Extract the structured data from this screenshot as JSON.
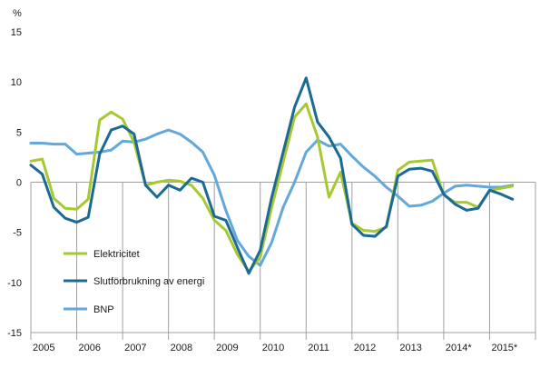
{
  "chart_data": {
    "type": "line",
    "ylabel": "%",
    "ylim": [
      -15,
      15
    ],
    "yticks": [
      15,
      10,
      5,
      0,
      -5,
      -10,
      -15
    ],
    "xlim": [
      2005.0,
      2016.0
    ],
    "xticks": [
      {
        "label": "2005",
        "x": 2005.0
      },
      {
        "label": "2006",
        "x": 2006.0
      },
      {
        "label": "2007",
        "x": 2007.0
      },
      {
        "label": "2008",
        "x": 2008.0
      },
      {
        "label": "2009",
        "x": 2009.0
      },
      {
        "label": "2010",
        "x": 2010.0
      },
      {
        "label": "2011",
        "x": 2011.0
      },
      {
        "label": "2012",
        "x": 2012.0
      },
      {
        "label": "2013",
        "x": 2013.0
      },
      {
        "label": "2014*",
        "x": 2014.0
      },
      {
        "label": "2015*",
        "x": 2015.0
      }
    ],
    "gridlines": false,
    "legend_position": "bottom-left",
    "series": [
      {
        "name": "Elektricitet",
        "color": "#a6c932",
        "points": [
          [
            2005.0,
            2.1
          ],
          [
            2005.25,
            2.3
          ],
          [
            2005.5,
            -1.6
          ],
          [
            2005.75,
            -2.6
          ],
          [
            2006.0,
            -2.7
          ],
          [
            2006.25,
            -1.7
          ],
          [
            2006.5,
            6.2
          ],
          [
            2006.75,
            7.0
          ],
          [
            2007.0,
            6.3
          ],
          [
            2007.25,
            4.0
          ],
          [
            2007.5,
            -0.3
          ],
          [
            2007.75,
            0.0
          ],
          [
            2008.0,
            0.2
          ],
          [
            2008.25,
            0.1
          ],
          [
            2008.5,
            -0.3
          ],
          [
            2008.75,
            -1.6
          ],
          [
            2009.0,
            -3.8
          ],
          [
            2009.25,
            -4.8
          ],
          [
            2009.5,
            -7.2
          ],
          [
            2009.75,
            -8.9
          ],
          [
            2010.0,
            -7.5
          ],
          [
            2010.25,
            -2.5
          ],
          [
            2010.5,
            2.0
          ],
          [
            2010.75,
            6.5
          ],
          [
            2011.0,
            7.8
          ],
          [
            2011.25,
            4.5
          ],
          [
            2011.5,
            -1.5
          ],
          [
            2011.75,
            1.0
          ],
          [
            2012.0,
            -4.1
          ],
          [
            2012.25,
            -4.8
          ],
          [
            2012.5,
            -4.9
          ],
          [
            2012.75,
            -4.5
          ],
          [
            2013.0,
            1.2
          ],
          [
            2013.25,
            2.0
          ],
          [
            2013.5,
            2.1
          ],
          [
            2013.75,
            2.2
          ],
          [
            2014.0,
            -1.3
          ],
          [
            2014.25,
            -2.0
          ],
          [
            2014.5,
            -2.0
          ],
          [
            2014.75,
            -2.5
          ],
          [
            2015.0,
            -0.8
          ],
          [
            2015.25,
            -0.6
          ],
          [
            2015.5,
            -0.4
          ]
        ]
      },
      {
        "name": "Slutförbrukning av energi",
        "color": "#1b6a95",
        "points": [
          [
            2005.0,
            1.7
          ],
          [
            2005.25,
            0.8
          ],
          [
            2005.5,
            -2.5
          ],
          [
            2005.75,
            -3.6
          ],
          [
            2006.0,
            -4.0
          ],
          [
            2006.25,
            -3.5
          ],
          [
            2006.5,
            2.8
          ],
          [
            2006.75,
            5.2
          ],
          [
            2007.0,
            5.6
          ],
          [
            2007.25,
            4.8
          ],
          [
            2007.5,
            -0.3
          ],
          [
            2007.75,
            -1.5
          ],
          [
            2008.0,
            -0.3
          ],
          [
            2008.25,
            -0.8
          ],
          [
            2008.5,
            0.4
          ],
          [
            2008.75,
            0.0
          ],
          [
            2009.0,
            -3.4
          ],
          [
            2009.25,
            -3.8
          ],
          [
            2009.5,
            -6.5
          ],
          [
            2009.75,
            -9.1
          ],
          [
            2010.0,
            -6.8
          ],
          [
            2010.25,
            -1.5
          ],
          [
            2010.5,
            3.0
          ],
          [
            2010.75,
            7.5
          ],
          [
            2011.0,
            10.4
          ],
          [
            2011.25,
            6.0
          ],
          [
            2011.5,
            4.5
          ],
          [
            2011.75,
            2.4
          ],
          [
            2012.0,
            -4.2
          ],
          [
            2012.25,
            -5.3
          ],
          [
            2012.5,
            -5.4
          ],
          [
            2012.75,
            -4.4
          ],
          [
            2013.0,
            0.6
          ],
          [
            2013.25,
            1.3
          ],
          [
            2013.5,
            1.4
          ],
          [
            2013.75,
            1.1
          ],
          [
            2014.0,
            -1.2
          ],
          [
            2014.25,
            -2.2
          ],
          [
            2014.5,
            -2.8
          ],
          [
            2014.75,
            -2.6
          ],
          [
            2015.0,
            -0.8
          ],
          [
            2015.25,
            -1.2
          ],
          [
            2015.5,
            -1.7
          ]
        ]
      },
      {
        "name": "BNP",
        "color": "#62a8dc",
        "points": [
          [
            2005.0,
            3.9
          ],
          [
            2005.25,
            3.9
          ],
          [
            2005.5,
            3.8
          ],
          [
            2005.75,
            3.8
          ],
          [
            2006.0,
            2.8
          ],
          [
            2006.25,
            2.9
          ],
          [
            2006.5,
            3.0
          ],
          [
            2006.75,
            3.2
          ],
          [
            2007.0,
            4.1
          ],
          [
            2007.25,
            4.0
          ],
          [
            2007.5,
            4.3
          ],
          [
            2007.75,
            4.8
          ],
          [
            2008.0,
            5.2
          ],
          [
            2008.25,
            4.8
          ],
          [
            2008.5,
            4.0
          ],
          [
            2008.75,
            3.0
          ],
          [
            2009.0,
            0.7
          ],
          [
            2009.25,
            -2.8
          ],
          [
            2009.5,
            -5.8
          ],
          [
            2009.75,
            -7.4
          ],
          [
            2010.0,
            -8.3
          ],
          [
            2010.25,
            -6.0
          ],
          [
            2010.5,
            -2.5
          ],
          [
            2010.75,
            0.0
          ],
          [
            2011.0,
            3.0
          ],
          [
            2011.25,
            4.2
          ],
          [
            2011.5,
            3.6
          ],
          [
            2011.75,
            3.8
          ],
          [
            2012.0,
            2.6
          ],
          [
            2012.25,
            1.5
          ],
          [
            2012.5,
            0.6
          ],
          [
            2012.75,
            -0.5
          ],
          [
            2013.0,
            -1.4
          ],
          [
            2013.25,
            -2.4
          ],
          [
            2013.5,
            -2.3
          ],
          [
            2013.75,
            -1.9
          ],
          [
            2014.0,
            -1.1
          ],
          [
            2014.25,
            -0.4
          ],
          [
            2014.5,
            -0.3
          ],
          [
            2014.75,
            -0.4
          ],
          [
            2015.0,
            -0.5
          ],
          [
            2015.25,
            -0.5
          ],
          [
            2015.5,
            -0.3
          ]
        ]
      }
    ]
  }
}
